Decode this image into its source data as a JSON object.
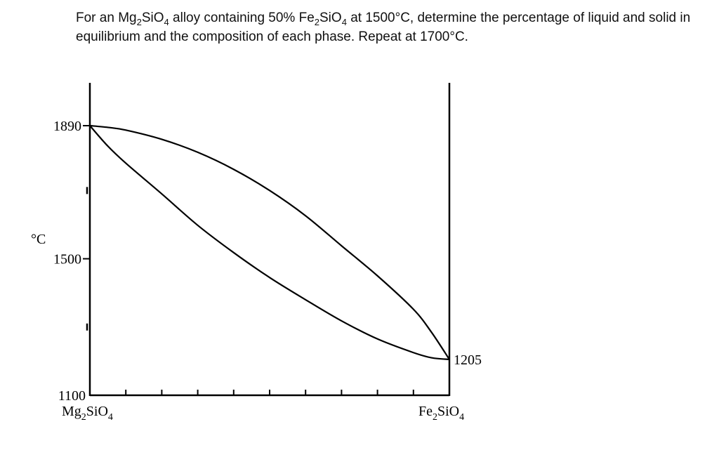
{
  "question": {
    "parts": [
      "For an Mg",
      "2",
      "SiO",
      "4",
      " alloy containing 50% Fe",
      "2",
      "SiO",
      "4",
      " at 1500°C, determine the percentage of liquid and solid in equilibrium and the composition of each phase. Repeat at 1700°C."
    ]
  },
  "chart_data": {
    "type": "line",
    "title": "",
    "xlabel": "",
    "ylabel": "°C",
    "xlim": [
      0,
      100
    ],
    "ylim": [
      1100,
      1890
    ],
    "x_end_labels": {
      "left": {
        "base": "Mg",
        "sub1": "2",
        "mid": "SiO",
        "sub2": "4"
      },
      "right": {
        "base": "Fe",
        "sub1": "2",
        "mid": "SiO",
        "sub2": "4"
      }
    },
    "x_ticks": [
      10,
      20,
      30,
      40,
      50,
      60,
      70,
      80,
      90
    ],
    "y_ticks": [
      {
        "value": 1890,
        "label": "1890"
      },
      {
        "value": 1700,
        "label": ""
      },
      {
        "value": 1500,
        "label": "1500"
      },
      {
        "value": 1300,
        "label": ""
      },
      {
        "value": 1100,
        "label": "1100"
      }
    ],
    "annotations": [
      {
        "x": 100,
        "y": 1205,
        "label": "1205"
      }
    ],
    "series": [
      {
        "x": [
          0,
          5,
          10,
          20,
          30,
          40,
          50,
          60,
          70,
          80,
          90,
          95,
          100
        ],
        "y": [
          1890,
          1885,
          1877,
          1850,
          1812,
          1762,
          1700,
          1626,
          1538,
          1450,
          1352,
          1285,
          1205
        ]
      },
      {
        "x": [
          0,
          5,
          10,
          20,
          30,
          40,
          50,
          60,
          70,
          80,
          90,
          95,
          100
        ],
        "y": [
          1890,
          1830,
          1780,
          1690,
          1598,
          1518,
          1445,
          1380,
          1318,
          1265,
          1225,
          1210,
          1205
        ]
      }
    ]
  }
}
